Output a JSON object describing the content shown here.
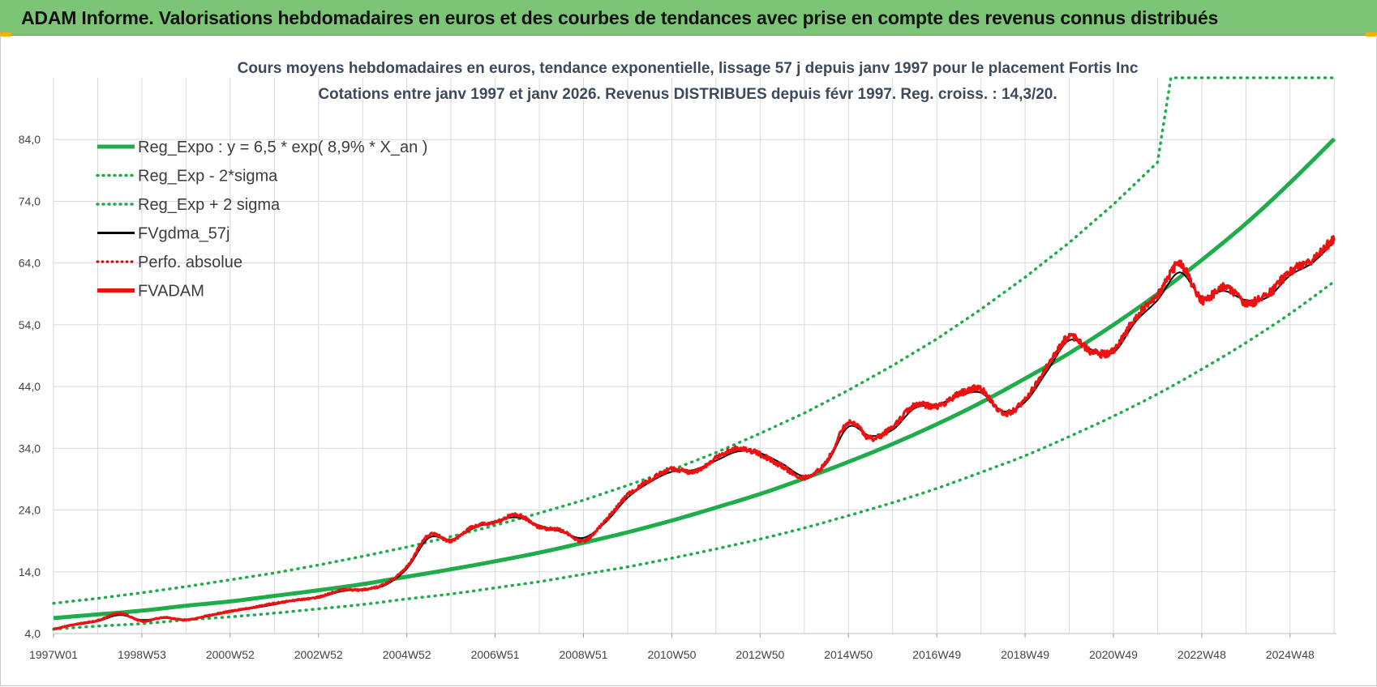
{
  "banner": {
    "title": "ADAM Informe. Valorisations hebdomadaires en euros et des courbes de tendances avec prise en compte des revenus connus distribués"
  },
  "colors": {
    "banner_bg": "#7cc576",
    "reg": "#1fac4a",
    "fvg": "#000000",
    "perfo": "#e00000",
    "fvadam": "#ee1111",
    "grid": "#d9d9d9",
    "axis_text": "#444444"
  },
  "chart_data": {
    "type": "line",
    "title": "Cours moyens hebdomadaires en euros, tendance exponentielle, lissage 57 j depuis janv 1997  pour le placement Fortis Inc",
    "subtitle": "Cotations entre janv 1997 et janv 2026. Revenus DISTRIBUES depuis févr 1997. Reg. croiss. : 14,3/20.",
    "xlabel": "",
    "ylabel": "",
    "xlim": [
      1997.0,
      2026.05
    ],
    "ylim": [
      4.0,
      94.0
    ],
    "yticks": [
      "84,0",
      "74,0",
      "64,0",
      "54,0",
      "44,0",
      "34,0",
      "24,0",
      "14,0",
      "4,0"
    ],
    "ytick_values": [
      84,
      74,
      64,
      54,
      44,
      34,
      24,
      14,
      4
    ],
    "xticks": [
      "1997W01",
      "1998W53",
      "2000W52",
      "2002W52",
      "2004W52",
      "2006W51",
      "2008W51",
      "2010W50",
      "2012W50",
      "2014W50",
      "2016W49",
      "2018W49",
      "2020W49",
      "2022W48",
      "2024W48"
    ],
    "xtick_values": [
      1997.0,
      1999.0,
      2001.0,
      2003.0,
      2005.0,
      2007.0,
      2009.0,
      2011.0,
      2013.0,
      2015.0,
      2017.0,
      2019.0,
      2021.0,
      2023.0,
      2025.0
    ],
    "grid": true,
    "legend_position": "top-left",
    "legend": [
      {
        "label": "Reg_Expo : y = 6,5 * exp( 8,9% *  X_an )",
        "style": "solid-thick-green"
      },
      {
        "label": "Reg_Exp - 2*sigma",
        "style": "dotted-green"
      },
      {
        "label": "Reg_Exp + 2 sigma",
        "style": "dotted-green"
      },
      {
        "label": "FVgdma_57j",
        "style": "solid-black"
      },
      {
        "label": "Perfo. absolue",
        "style": "dotted-red"
      },
      {
        "label": "FVADAM",
        "style": "solid-thick-red"
      }
    ],
    "series": [
      {
        "name": "Reg_Expo",
        "x": [
          1997.0,
          1998.0,
          1999.0,
          2000.0,
          2001.0,
          2002.0,
          2003.0,
          2004.0,
          2005.0,
          2006.0,
          2007.0,
          2008.0,
          2009.0,
          2010.0,
          2011.0,
          2012.0,
          2013.0,
          2014.0,
          2015.0,
          2016.0,
          2017.0,
          2018.0,
          2019.0,
          2020.0,
          2021.0,
          2022.0,
          2023.0,
          2024.0,
          2025.0,
          2026.0
        ],
        "values": [
          6.5,
          7.1,
          7.7,
          8.5,
          9.2,
          10.1,
          11.0,
          12.0,
          13.2,
          14.4,
          15.7,
          17.1,
          18.7,
          20.4,
          22.3,
          24.4,
          26.6,
          29.1,
          31.8,
          34.7,
          37.9,
          41.4,
          45.3,
          49.4,
          54.0,
          59.0,
          64.5,
          70.4,
          77.0,
          84.1
        ]
      },
      {
        "name": "Reg_Exp - 2*sigma",
        "x": [
          1997.0,
          1998.0,
          1999.0,
          2000.0,
          2001.0,
          2002.0,
          2003.0,
          2004.0,
          2005.0,
          2006.0,
          2007.0,
          2008.0,
          2009.0,
          2010.0,
          2011.0,
          2012.0,
          2013.0,
          2014.0,
          2015.0,
          2016.0,
          2017.0,
          2018.0,
          2019.0,
          2020.0,
          2021.0,
          2022.0,
          2023.0,
          2024.0,
          2025.0,
          2026.0
        ],
        "values": [
          4.7,
          5.2,
          5.6,
          6.2,
          6.7,
          7.3,
          8.0,
          8.7,
          9.6,
          10.4,
          11.4,
          12.4,
          13.6,
          14.8,
          16.2,
          17.7,
          19.3,
          21.1,
          23.1,
          25.2,
          27.5,
          30.1,
          32.8,
          35.9,
          39.2,
          42.8,
          46.8,
          51.1,
          55.8,
          61.0
        ]
      },
      {
        "name": "Reg_Exp + 2 sigma",
        "x": [
          1997.0,
          1998.0,
          1999.0,
          2000.0,
          2001.0,
          2002.0,
          2003.0,
          2004.0,
          2005.0,
          2006.0,
          2007.0,
          2008.0,
          2009.0,
          2010.0,
          2011.0,
          2012.0,
          2013.0,
          2014.0,
          2015.0,
          2016.0,
          2017.0,
          2018.0,
          2019.0,
          2020.0,
          2021.0,
          2022.0,
          2022.3,
          2023.0,
          2024.0,
          2025.0,
          2026.0
        ],
        "values": [
          8.9,
          9.7,
          10.6,
          11.6,
          12.7,
          13.8,
          15.1,
          16.5,
          18.0,
          19.7,
          21.5,
          23.5,
          25.6,
          28.0,
          30.5,
          33.3,
          36.4,
          39.7,
          43.4,
          47.4,
          51.7,
          56.5,
          61.7,
          67.3,
          73.5,
          80.3,
          94.0,
          94.0,
          94.0,
          94.0,
          94.0
        ]
      },
      {
        "name": "FVgdma_57j",
        "x": [
          1997.0,
          1997.5,
          1998.0,
          1998.5,
          1999.0,
          1999.5,
          2000.0,
          2000.5,
          2001.0,
          2001.5,
          2002.0,
          2002.5,
          2003.0,
          2003.5,
          2004.0,
          2004.5,
          2005.0,
          2005.5,
          2006.0,
          2006.5,
          2007.0,
          2007.5,
          2008.0,
          2008.5,
          2009.0,
          2009.5,
          2010.0,
          2010.5,
          2011.0,
          2011.5,
          2012.0,
          2012.5,
          2013.0,
          2013.5,
          2014.0,
          2014.5,
          2015.0,
          2015.5,
          2016.0,
          2016.5,
          2017.0,
          2017.5,
          2018.0,
          2018.5,
          2019.0,
          2019.5,
          2020.0,
          2020.5,
          2021.0,
          2021.5,
          2022.0,
          2022.5,
          2023.0,
          2023.5,
          2024.0,
          2024.5,
          2025.0,
          2025.5,
          2026.0
        ],
        "values": [
          4.8,
          5.4,
          6.0,
          7.0,
          6.2,
          6.5,
          6.3,
          6.8,
          7.5,
          8.1,
          8.7,
          9.5,
          9.8,
          10.8,
          11.2,
          11.8,
          14.5,
          19.5,
          19.2,
          21.0,
          22.2,
          22.8,
          21.5,
          20.5,
          19.5,
          22.0,
          26.0,
          28.5,
          30.2,
          30.5,
          32.0,
          33.5,
          33.2,
          31.5,
          29.5,
          31.5,
          37.5,
          36.0,
          37.0,
          40.5,
          41.0,
          42.5,
          43.0,
          40.0,
          41.5,
          46.5,
          51.5,
          50.0,
          49.5,
          54.5,
          58.0,
          62.5,
          58.5,
          59.5,
          58.0,
          58.5,
          62.0,
          64.0,
          67.5
        ]
      },
      {
        "name": "FVADAM",
        "x": [
          1997.0,
          1997.5,
          1998.0,
          1998.5,
          1999.0,
          1999.5,
          2000.0,
          2000.5,
          2001.0,
          2001.5,
          2002.0,
          2002.5,
          2003.0,
          2003.5,
          2004.0,
          2004.5,
          2005.0,
          2005.5,
          2006.0,
          2006.5,
          2007.0,
          2007.5,
          2008.0,
          2008.5,
          2009.0,
          2009.5,
          2010.0,
          2010.5,
          2011.0,
          2011.5,
          2012.0,
          2012.5,
          2013.0,
          2013.5,
          2014.0,
          2014.5,
          2015.0,
          2015.5,
          2016.0,
          2016.5,
          2017.0,
          2017.5,
          2018.0,
          2018.5,
          2019.0,
          2019.5,
          2020.0,
          2020.5,
          2021.0,
          2021.5,
          2022.0,
          2022.5,
          2023.0,
          2023.5,
          2024.0,
          2024.5,
          2025.0,
          2025.5,
          2026.0
        ],
        "values": [
          4.7,
          5.5,
          6.1,
          7.3,
          6.0,
          6.6,
          6.2,
          6.9,
          7.6,
          8.2,
          8.9,
          9.4,
          9.9,
          11.0,
          11.1,
          12.0,
          14.8,
          20.0,
          19.0,
          21.3,
          22.0,
          23.2,
          21.2,
          20.7,
          19.0,
          22.3,
          26.4,
          28.8,
          30.6,
          30.1,
          32.4,
          34.0,
          33.0,
          31.1,
          29.2,
          31.8,
          38.2,
          35.6,
          37.4,
          41.0,
          40.7,
          42.8,
          43.5,
          39.6,
          41.9,
          47.2,
          52.0,
          49.6,
          49.9,
          55.2,
          58.8,
          63.8,
          58.0,
          60.2,
          57.6,
          58.9,
          62.6,
          64.6,
          68.0
        ]
      }
    ]
  }
}
